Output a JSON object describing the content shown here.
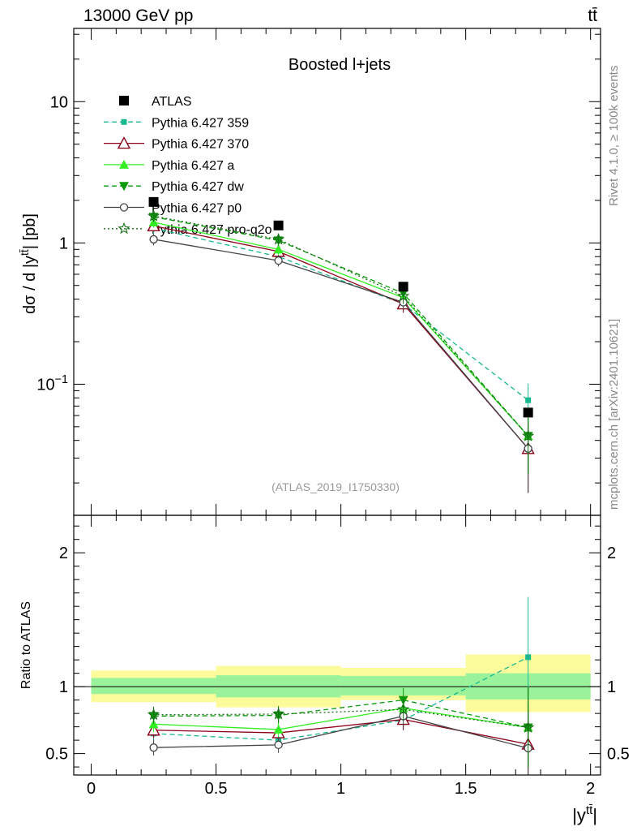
{
  "header": {
    "left_title": "13000 GeV pp",
    "right_title": "tt̄"
  },
  "side": {
    "rivet": "Rivet 4.1.0, ≥ 100k events",
    "mcplots": "mcplots.cern.ch [arXiv:2401.10621]"
  },
  "chart_data": [
    {
      "type": "line",
      "title": "Boosted l+jets",
      "analysis_tag": "(ATLAS_2019_I1750330)",
      "ylabel": "dσ / d |y^{tt̄}| [pb]",
      "yscale": "log",
      "ylim": [
        0.0118,
        33
      ],
      "yticks": [
        {
          "value": 10,
          "label": "10"
        },
        {
          "value": 1,
          "label": "1"
        },
        {
          "value": 0.1,
          "label": "10",
          "sup": "−1"
        }
      ],
      "x": [
        0.25,
        0.75,
        1.25,
        1.75
      ],
      "series": [
        {
          "name": "ATLAS",
          "color": "#000000",
          "dash": "",
          "marker": "square",
          "values": [
            1.95,
            1.33,
            0.49,
            0.063
          ]
        },
        {
          "name": "Pythia 6.427 359",
          "color": "#17b890",
          "dash": "6,4",
          "marker": "smallsquare",
          "values": [
            1.27,
            0.8,
            0.37,
            0.077
          ],
          "err": [
            0.12,
            0.07,
            0.04,
            0.024
          ]
        },
        {
          "name": "Pythia 6.427 370",
          "color": "#8b0018",
          "dash": "",
          "marker": "triangle-open",
          "values": [
            1.32,
            0.87,
            0.37,
            0.035
          ],
          "err": [
            0.12,
            0.08,
            0.05,
            0.018
          ]
        },
        {
          "name": "Pythia 6.427 a",
          "color": "#33ee22",
          "dash": "",
          "marker": "triangle",
          "values": [
            1.4,
            0.9,
            0.41,
            0.043
          ],
          "err": [
            0.12,
            0.08,
            0.05,
            0.02
          ]
        },
        {
          "name": "Pythia 6.427 dw",
          "color": "#0a9a0a",
          "dash": "6,4",
          "marker": "triangle-down",
          "values": [
            1.53,
            1.04,
            0.44,
            0.043
          ],
          "err": [
            0.13,
            0.09,
            0.05,
            0.02
          ]
        },
        {
          "name": "Pythia 6.427 p0",
          "color": "#444444",
          "dash": "",
          "marker": "circle-open",
          "values": [
            1.06,
            0.75,
            0.38,
            0.035
          ],
          "err": [
            0.1,
            0.07,
            0.04,
            0.018
          ]
        },
        {
          "name": "Pythia 6.427 pro-q2o",
          "color": "#157015",
          "dash": "2,3",
          "marker": "star",
          "values": [
            1.55,
            1.06,
            0.42,
            0.043
          ],
          "err": [
            0.13,
            0.09,
            0.05,
            0.02
          ]
        }
      ]
    },
    {
      "type": "line",
      "title": "",
      "ylabel": "Ratio to ATLAS",
      "xlabel": "|y^{tt̄}|",
      "xlim": [
        -0.07,
        2.04
      ],
      "ylim": [
        0.34,
        2.28
      ],
      "xticks": [
        {
          "value": 0,
          "label": "0"
        },
        {
          "value": 0.5,
          "label": "0.5"
        },
        {
          "value": 1,
          "label": "1"
        },
        {
          "value": 1.5,
          "label": "1.5"
        },
        {
          "value": 2,
          "label": "2"
        }
      ],
      "yticks": [
        {
          "value": 0.5,
          "label": "0.5"
        },
        {
          "value": 1,
          "label": "1"
        },
        {
          "value": 2,
          "label": "2"
        }
      ],
      "bins": [
        [
          0,
          0.5
        ],
        [
          0.5,
          1
        ],
        [
          1,
          1.5
        ],
        [
          1.5,
          2
        ]
      ],
      "band_yellow": [
        [
          0.885,
          1.12
        ],
        [
          0.845,
          1.155
        ],
        [
          0.9,
          1.14
        ],
        [
          0.81,
          1.24
        ]
      ],
      "band_green": [
        [
          0.945,
          1.065
        ],
        [
          0.92,
          1.085
        ],
        [
          0.935,
          1.08
        ],
        [
          0.905,
          1.1
        ]
      ],
      "x": [
        0.25,
        0.75,
        1.25,
        1.75
      ],
      "series": [
        {
          "name": "Pythia 6.427 359",
          "values": [
            0.65,
            0.6,
            0.75,
            1.22
          ],
          "err": [
            0.06,
            0.06,
            0.07,
            0.45
          ]
        },
        {
          "name": "Pythia 6.427 370",
          "values": [
            0.675,
            0.655,
            0.755,
            0.57
          ],
          "err": [
            0.06,
            0.06,
            0.08,
            0.3
          ]
        },
        {
          "name": "Pythia 6.427 a",
          "values": [
            0.72,
            0.68,
            0.84,
            0.695
          ],
          "err": [
            0.06,
            0.06,
            0.08,
            0.3
          ]
        },
        {
          "name": "Pythia 6.427 dw",
          "values": [
            0.78,
            0.785,
            0.9,
            0.695
          ],
          "err": [
            0.06,
            0.06,
            0.09,
            0.3
          ]
        },
        {
          "name": "Pythia 6.427 p0",
          "values": [
            0.545,
            0.565,
            0.78,
            0.54
          ],
          "err": [
            0.06,
            0.06,
            0.08,
            0.28
          ]
        },
        {
          "name": "Pythia 6.427 pro-q2o",
          "values": [
            0.79,
            0.795,
            0.83,
            0.695
          ],
          "err": [
            0.06,
            0.06,
            0.08,
            0.3
          ]
        }
      ]
    }
  ]
}
